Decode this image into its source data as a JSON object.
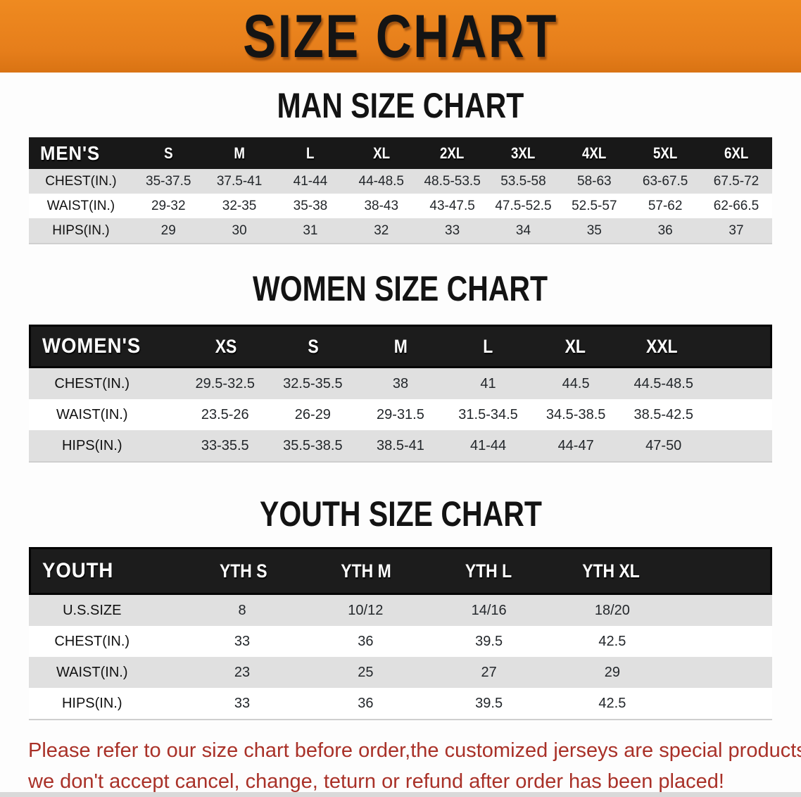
{
  "banner": {
    "title": "SIZE CHART"
  },
  "colors": {
    "banner_bg": "#e67e1b",
    "table_header_bg": "#181818",
    "row_alt_bg": "#e0e0e0",
    "disclaimer_red": "#a93128"
  },
  "men": {
    "heading": "MAN SIZE CHART",
    "corner": "MEN'S",
    "sizes": [
      "S",
      "M",
      "L",
      "XL",
      "2XL",
      "3XL",
      "4XL",
      "5XL",
      "6XL"
    ],
    "rows": [
      {
        "label": "CHEST(IN.)",
        "values": [
          "35-37.5",
          "37.5-41",
          "41-44",
          "44-48.5",
          "48.5-53.5",
          "53.5-58",
          "58-63",
          "63-67.5",
          "67.5-72"
        ]
      },
      {
        "label": "WAIST(IN.)",
        "values": [
          "29-32",
          "32-35",
          "35-38",
          "38-43",
          "43-47.5",
          "47.5-52.5",
          "52.5-57",
          "57-62",
          "62-66.5"
        ]
      },
      {
        "label": "HIPS(IN.)",
        "values": [
          "29",
          "30",
          "31",
          "32",
          "33",
          "34",
          "35",
          "36",
          "37"
        ]
      }
    ]
  },
  "women": {
    "heading": "WOMEN SIZE CHART",
    "corner": "WOMEN'S",
    "sizes": [
      "XS",
      "S",
      "M",
      "L",
      "XL",
      "XXL"
    ],
    "rows": [
      {
        "label": "CHEST(IN.)",
        "values": [
          "29.5-32.5",
          "32.5-35.5",
          "38",
          "41",
          "44.5",
          "44.5-48.5"
        ]
      },
      {
        "label": "WAIST(IN.)",
        "values": [
          "23.5-26",
          "26-29",
          "29-31.5",
          "31.5-34.5",
          "34.5-38.5",
          "38.5-42.5"
        ]
      },
      {
        "label": "HIPS(IN.)",
        "values": [
          "33-35.5",
          "35.5-38.5",
          "38.5-41",
          "41-44",
          "44-47",
          "47-50"
        ]
      }
    ]
  },
  "youth": {
    "heading": "YOUTH SIZE CHART",
    "corner": "YOUTH",
    "sizes": [
      "YTH S",
      "YTH M",
      "YTH L",
      "YTH XL"
    ],
    "rows": [
      {
        "label": "U.S.SIZE",
        "values": [
          "8",
          "10/12",
          "14/16",
          "18/20"
        ]
      },
      {
        "label": "CHEST(IN.)",
        "values": [
          "33",
          "36",
          "39.5",
          "42.5"
        ]
      },
      {
        "label": "WAIST(IN.)",
        "values": [
          "23",
          "25",
          "27",
          "29"
        ]
      },
      {
        "label": "HIPS(IN.)",
        "values": [
          "33",
          "36",
          "39.5",
          "42.5"
        ]
      }
    ]
  },
  "disclaimer": {
    "line1": "Please refer to our size chart before order,the customized jerseys are special products,",
    "line2": "we don't accept cancel, change, teturn or refund after order has been placed!"
  }
}
